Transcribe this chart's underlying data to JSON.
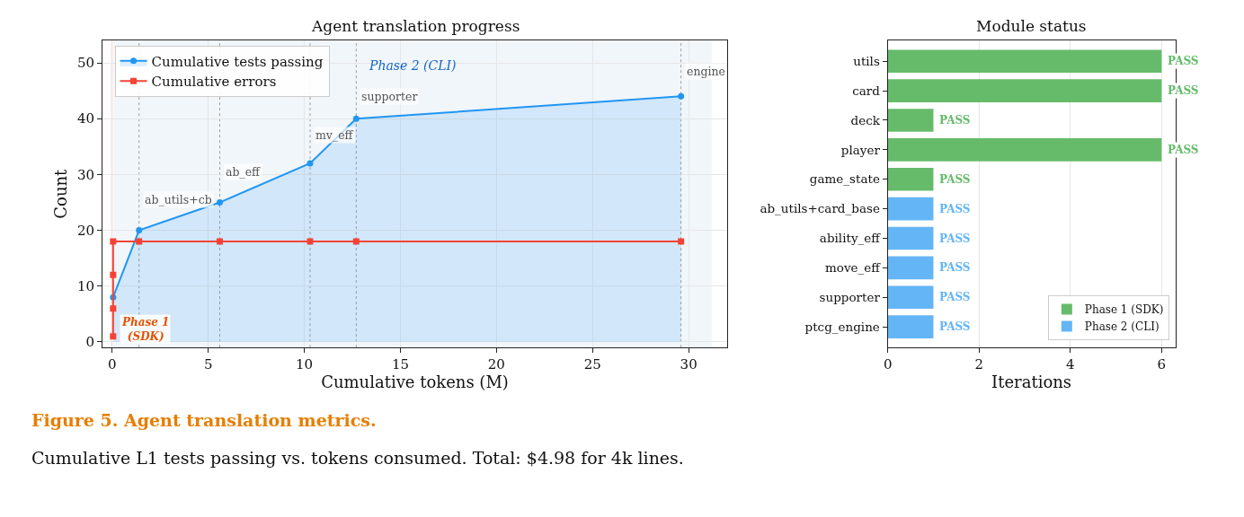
{
  "chart_data": [
    {
      "type": "line",
      "title": "Agent translation progress",
      "xlabel": "Cumulative tokens (M)",
      "ylabel": "Count",
      "xlim": [
        -0.5,
        32
      ],
      "ylim": [
        -1,
        54
      ],
      "xticks": [
        0,
        5,
        10,
        15,
        20,
        25,
        30
      ],
      "yticks": [
        0,
        10,
        20,
        30,
        40,
        50
      ],
      "grid": true,
      "legend": "top left",
      "series": [
        {
          "name": "Cumulative tests passing",
          "type": "area",
          "color": "#2196f3",
          "marker": "circle",
          "x": [
            0.05,
            1.4,
            5.6,
            10.3,
            12.7,
            29.6
          ],
          "values": [
            8,
            20,
            25,
            32,
            40,
            44
          ]
        },
        {
          "name": "Cumulative errors",
          "type": "line",
          "color": "#f44336",
          "marker": "square",
          "x": [
            0.05,
            0.05,
            0.05,
            0.05,
            1.4,
            5.6,
            10.3,
            12.7,
            29.6
          ],
          "values": [
            1,
            6,
            12,
            18,
            18,
            18,
            18,
            18,
            18
          ]
        }
      ],
      "bands": [
        {
          "axis": "x",
          "from": -0.1,
          "to": 0.1,
          "label": "Phase 1\n(SDK)",
          "color": "#e65100"
        },
        {
          "axis": "x",
          "from": 0.1,
          "to": 31.2,
          "label": "Phase 2 (CLI)",
          "color": "#1565c0"
        }
      ],
      "ref_lines": [
        {
          "axis": "x",
          "value": 1.4,
          "color": "#9e9e9e",
          "line_style": "dotted"
        },
        {
          "axis": "x",
          "value": 5.6,
          "color": "#9e9e9e",
          "line_style": "dotted"
        },
        {
          "axis": "x",
          "value": 10.3,
          "color": "#9e9e9e",
          "line_style": "dotted"
        },
        {
          "axis": "x",
          "value": 12.7,
          "color": "#9e9e9e",
          "line_style": "dotted"
        },
        {
          "axis": "x",
          "value": 29.6,
          "color": "#9e9e9e",
          "line_style": "dotted"
        }
      ],
      "annotations": [
        {
          "text": "ab_utils+cb",
          "x": 1.4,
          "y": 25.5
        },
        {
          "text": "ab_eff",
          "x": 5.6,
          "y": 30.5
        },
        {
          "text": "mv_eff",
          "x": 10.3,
          "y": 37
        },
        {
          "text": "supporter",
          "x": 12.7,
          "y": 44
        },
        {
          "text": "engine",
          "x": 29.6,
          "y": 48.5
        },
        "Figure 5. Agent translation metrics.",
        "Cumulative L1 tests passing vs. tokens consumed. Total: $4.98 for 4k lines."
      ]
    },
    {
      "type": "bar",
      "orientation": "horizontal",
      "title": "Module status",
      "xlabel": "Iterations",
      "categories": [
        "utils",
        "card",
        "deck",
        "player",
        "game_state",
        "ab_utils+card_base",
        "ability_eff",
        "move_eff",
        "supporter",
        "ptcg_engine"
      ],
      "xlim": [
        0,
        6.3
      ],
      "xticks": [
        0,
        2,
        4,
        6
      ],
      "grid": "x",
      "legend": "bottom right",
      "series": [
        {
          "name": "Phase 1 (SDK)",
          "color": "#66bb6a",
          "values": [
            6,
            6,
            1,
            6,
            1,
            null,
            null,
            null,
            null,
            null
          ],
          "value_labels": [
            "PASS",
            "PASS",
            "PASS",
            "PASS",
            "PASS",
            null,
            null,
            null,
            null,
            null
          ]
        },
        {
          "name": "Phase 2 (CLI)",
          "color": "#64b5f6",
          "values": [
            null,
            null,
            null,
            null,
            null,
            1,
            1,
            1,
            1,
            1
          ],
          "value_labels": [
            null,
            null,
            null,
            null,
            null,
            "PASS",
            "PASS",
            "PASS",
            "PASS",
            "PASS"
          ]
        }
      ]
    }
  ]
}
